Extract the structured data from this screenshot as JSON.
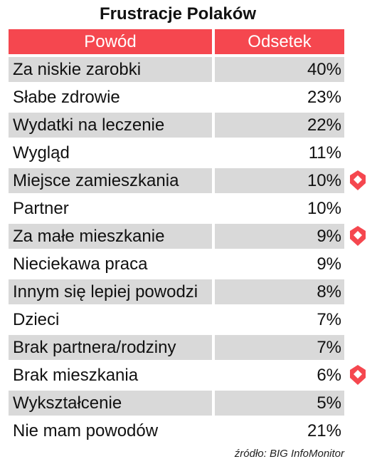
{
  "chart_data": {
    "type": "table",
    "title": "Frustracje Polaków",
    "columns": [
      "Powód",
      "Odsetek"
    ],
    "rows": [
      {
        "label": "Za niskie zarobki",
        "value": "40%"
      },
      {
        "label": "Słabe zdrowie",
        "value": "23%"
      },
      {
        "label": "Wydatki na leczenie",
        "value": "22%"
      },
      {
        "label": "Wygląd",
        "value": "11%"
      },
      {
        "label": "Miejsce zamieszkania",
        "value": "10%",
        "marked": true
      },
      {
        "label": "Partner",
        "value": "10%"
      },
      {
        "label": "Za małe mieszkanie",
        "value": "9%",
        "marked": true
      },
      {
        "label": "Nieciekawa praca",
        "value": "9%"
      },
      {
        "label": "Innym się lepiej powodzi",
        "value": "8%"
      },
      {
        "label": "Dzieci",
        "value": "7%"
      },
      {
        "label": "Brak partnera/rodziny",
        "value": "7%"
      },
      {
        "label": "Brak mieszkania",
        "value": "6%",
        "marked": true
      },
      {
        "label": "Wykształcenie",
        "value": "5%"
      },
      {
        "label": "Nie mam powodów",
        "value": "21%"
      }
    ],
    "source": "źródło: BIG InfoMonitor"
  },
  "colors": {
    "header_bg": "#f5474f",
    "header_text": "#ffffff",
    "stripe": "#d9d9d9",
    "marker": "#f5474f"
  },
  "icons": {
    "row_marker": "location-pin-icon"
  }
}
